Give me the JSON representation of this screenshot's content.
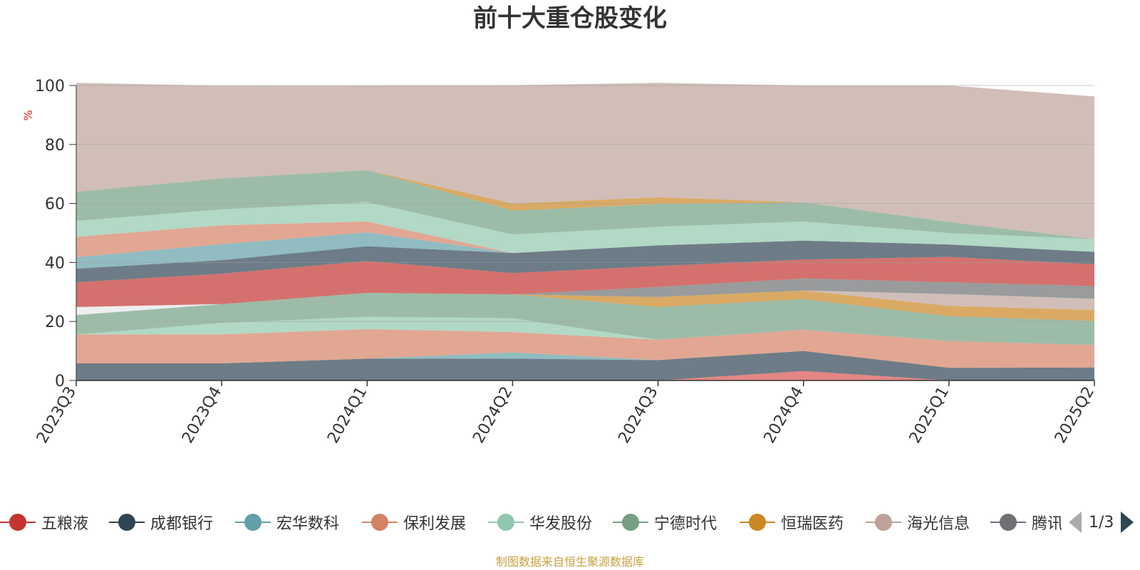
{
  "title": "前十大重仓股变化",
  "footer": "制图数据来自恒生聚源数据库",
  "pager": "1/3",
  "chart_data": {
    "type": "area",
    "stacked": true,
    "ylabel": "%",
    "ylim": [
      0,
      100
    ],
    "yticks": [
      0,
      20,
      40,
      60,
      80,
      100
    ],
    "grid": true,
    "categories": [
      "2023Q3",
      "2023Q4",
      "2024Q1",
      "2024Q2",
      "2024Q3",
      "2024Q4",
      "2025Q1",
      "2025Q2"
    ],
    "layers": [
      {
        "color": "#d9534f",
        "values": [
          0,
          0,
          0,
          0,
          0,
          3.2,
          0,
          0
        ]
      },
      {
        "color": "#2f4554",
        "values": [
          5.8,
          5.8,
          7.4,
          7.4,
          6.9,
          6.8,
          4.3,
          4.4
        ]
      },
      {
        "color": "#61a0a8",
        "values": [
          0,
          0,
          0,
          2.1,
          0,
          0,
          0,
          0
        ]
      },
      {
        "color": "#d48265",
        "values": [
          9.8,
          9.8,
          10,
          6.9,
          6.9,
          7.2,
          9.1,
          7.6
        ]
      },
      {
        "color": "#91c7ae",
        "values": [
          0,
          3.9,
          4.2,
          4.7,
          0,
          0,
          0,
          0
        ]
      },
      {
        "color": "#749f83",
        "values": [
          6.6,
          6.4,
          8.1,
          8.1,
          11.1,
          10.4,
          8.4,
          8.2
        ]
      },
      {
        "color": "#ca8622",
        "values": [
          0,
          0,
          0,
          0,
          3.4,
          2.9,
          3.5,
          3.7
        ]
      },
      {
        "color": "#bda29a",
        "values": [
          0,
          0,
          0,
          0,
          0,
          0,
          4,
          3.8
        ]
      },
      {
        "color": "#6e7074",
        "values": [
          0,
          0,
          0,
          0,
          3.4,
          4.1,
          4,
          4.3
        ]
      },
      {
        "color": "#e8e8e8",
        "values": [
          2.7,
          0,
          0,
          0,
          0,
          0,
          0,
          0
        ]
      },
      {
        "color": "#c23531",
        "values": [
          8.4,
          10.3,
          10.8,
          7.2,
          7.1,
          6.4,
          8.6,
          7.4
        ]
      },
      {
        "color": "#2f4554",
        "values": [
          4.6,
          4.6,
          5,
          6.8,
          7,
          6.4,
          4.2,
          4.2
        ]
      },
      {
        "color": "#61a0a8",
        "values": [
          3.9,
          5.4,
          4.7,
          0,
          0,
          0,
          0,
          0
        ]
      },
      {
        "color": "#d48265",
        "values": [
          6.9,
          6.4,
          3.7,
          0,
          0,
          0,
          0,
          0
        ]
      },
      {
        "color": "#91c7ae",
        "values": [
          5.4,
          5.4,
          6.6,
          6.3,
          6.3,
          6.5,
          3.9,
          4.3
        ]
      },
      {
        "color": "#749f83",
        "values": [
          9.9,
          10.5,
          10.8,
          8.1,
          7.7,
          6.5,
          3.7,
          0
        ]
      },
      {
        "color": "#ca8622",
        "values": [
          0,
          0,
          0,
          2.4,
          2.3,
          0,
          0,
          0
        ]
      },
      {
        "color": "#bda29a",
        "values": [
          36.9,
          31.4,
          28.7,
          40.1,
          38.8,
          39.6,
          46.3,
          48.4
        ]
      }
    ],
    "series": [
      {
        "name": "五粮液",
        "color": "#c23531"
      },
      {
        "name": "成都银行",
        "color": "#2f4554"
      },
      {
        "name": "宏华数科",
        "color": "#61a0a8"
      },
      {
        "name": "保利发展",
        "color": "#d48265"
      },
      {
        "name": "华发股份",
        "color": "#91c7ae"
      },
      {
        "name": "宁德时代",
        "color": "#749f83"
      },
      {
        "name": "恒瑞医药",
        "color": "#ca8622"
      },
      {
        "name": "海光信息",
        "color": "#bda29a"
      },
      {
        "name": "腾讯控股",
        "color": "#6e7074"
      }
    ]
  }
}
